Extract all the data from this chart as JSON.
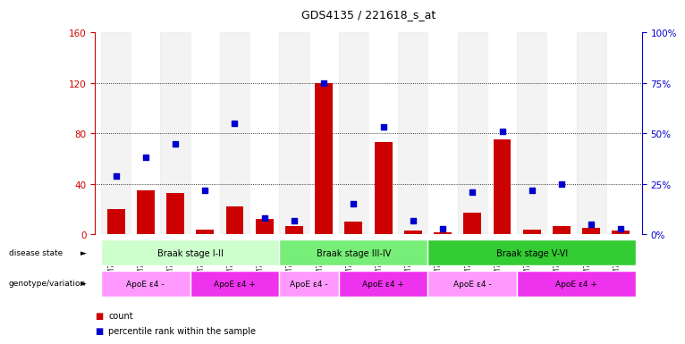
{
  "title": "GDS4135 / 221618_s_at",
  "samples": [
    "GSM735097",
    "GSM735098",
    "GSM735099",
    "GSM735094",
    "GSM735095",
    "GSM735096",
    "GSM735103",
    "GSM735104",
    "GSM735105",
    "GSM735100",
    "GSM735101",
    "GSM735102",
    "GSM735109",
    "GSM735110",
    "GSM735111",
    "GSM735106",
    "GSM735107",
    "GSM735108"
  ],
  "counts": [
    20,
    35,
    33,
    4,
    22,
    12,
    7,
    120,
    10,
    73,
    3,
    2,
    17,
    75,
    4,
    7,
    5,
    3
  ],
  "percentiles": [
    29,
    38,
    45,
    22,
    55,
    8,
    7,
    75,
    15,
    53,
    7,
    3,
    21,
    51,
    22,
    25,
    5,
    3
  ],
  "ylim_left": [
    0,
    160
  ],
  "ylim_right": [
    0,
    100
  ],
  "yticks_left": [
    0,
    40,
    80,
    120,
    160
  ],
  "yticks_right": [
    0,
    25,
    50,
    75,
    100
  ],
  "bar_color": "#CC0000",
  "scatter_color": "#0000CC",
  "legend_count_label": "count",
  "legend_pct_label": "percentile rank within the sample",
  "disease_state_label": "disease state",
  "genotype_label": "genotype/variation",
  "axis_label_color_left": "#CC0000",
  "axis_label_color_right": "#0000CC",
  "disease_groups": [
    {
      "label": "Braak stage I-II",
      "start": 0,
      "end": 6,
      "color": "#CCFFCC"
    },
    {
      "label": "Braak stage III-IV",
      "start": 6,
      "end": 11,
      "color": "#77EE77"
    },
    {
      "label": "Braak stage V-VI",
      "start": 11,
      "end": 18,
      "color": "#33CC33"
    }
  ],
  "genotype_groups": [
    {
      "label": "ApoE ε4 -",
      "start": 0,
      "end": 3,
      "color": "#FF99FF"
    },
    {
      "label": "ApoE ε4 +",
      "start": 3,
      "end": 6,
      "color": "#EE33EE"
    },
    {
      "label": "ApoE ε4 -",
      "start": 6,
      "end": 8,
      "color": "#FF99FF"
    },
    {
      "label": "ApoE ε4 +",
      "start": 8,
      "end": 11,
      "color": "#EE33EE"
    },
    {
      "label": "ApoE ε4 -",
      "start": 11,
      "end": 14,
      "color": "#FF99FF"
    },
    {
      "label": "ApoE ε4 +",
      "start": 14,
      "end": 18,
      "color": "#EE33EE"
    }
  ]
}
